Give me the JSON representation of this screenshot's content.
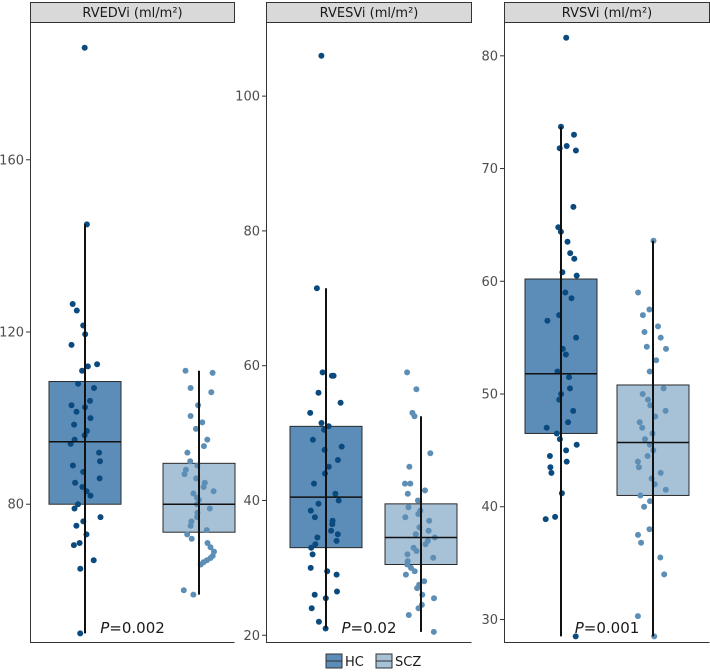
{
  "chart_data": [
    {
      "type": "box",
      "title": "RVEDVi (ml/m²)",
      "ylim": [
        48,
        192
      ],
      "yticks": [
        80,
        120,
        160
      ],
      "annotation": {
        "prefix": "P",
        "value": "=0.002"
      },
      "groups": [
        {
          "name": "HC",
          "box": {
            "min": 50,
            "q1": 80,
            "median": 94.5,
            "q3": 108.5,
            "max": 145
          },
          "points": [
            186,
            145,
            126.5,
            125,
            121.5,
            119.5,
            117,
            112.5,
            112,
            111,
            108,
            107,
            104,
            103,
            102.5,
            101.5,
            100,
            98.5,
            97,
            96,
            95,
            94,
            92,
            90,
            89,
            87.5,
            86,
            85,
            84,
            83,
            82,
            80,
            79,
            77,
            76,
            75,
            73,
            71,
            70.5,
            67,
            65,
            50
          ]
        },
        {
          "name": "SCZ",
          "box": {
            "min": 59,
            "q1": 73.5,
            "median": 80,
            "q3": 89.5,
            "max": 111
          },
          "points": [
            111,
            110.5,
            107,
            106,
            103,
            100.5,
            99,
            97.5,
            95,
            93.5,
            92,
            90,
            89,
            88,
            87,
            86,
            85,
            84,
            83,
            82.5,
            81.5,
            81,
            80,
            79,
            78,
            77,
            76,
            75,
            74,
            73,
            72,
            71,
            70,
            69,
            68,
            67.5,
            67,
            66.5,
            66,
            60,
            59
          ]
        }
      ]
    },
    {
      "type": "box",
      "title": "RVESVi (ml/m²)",
      "ylim": [
        19,
        111
      ],
      "yticks": [
        20,
        40,
        60,
        80,
        100
      ],
      "annotation": {
        "prefix": "P",
        "value": "=0.02"
      },
      "groups": [
        {
          "name": "HC",
          "box": {
            "min": 21,
            "q1": 33,
            "median": 40.5,
            "q3": 51,
            "max": 71.5
          },
          "points": [
            106,
            71.5,
            59,
            58.5,
            58.5,
            56,
            54.5,
            53,
            51.5,
            51,
            50.5,
            49,
            48,
            47.5,
            46,
            45,
            44,
            42.5,
            41,
            40,
            39.5,
            38.5,
            37.5,
            37,
            36.5,
            35.5,
            35,
            34.5,
            34,
            33.5,
            33,
            32,
            30,
            29.5,
            29,
            26.5,
            26,
            25.5,
            24,
            22,
            21
          ]
        },
        {
          "name": "SCZ",
          "box": {
            "min": 20.5,
            "q1": 30.5,
            "median": 34.5,
            "q3": 39.5,
            "max": 52.5
          },
          "points": [
            59,
            56.5,
            53,
            52.5,
            47,
            45,
            42.5,
            42.5,
            41.5,
            41,
            40,
            39,
            38.5,
            38,
            37.5,
            37,
            36,
            35.5,
            35,
            34.5,
            34,
            33.5,
            33,
            32.5,
            32,
            31.5,
            31,
            30.5,
            30,
            29.5,
            29,
            28,
            27.5,
            27,
            26,
            25.5,
            24.5,
            24,
            23,
            20.5
          ]
        }
      ]
    },
    {
      "type": "box",
      "title": "RVSVi (ml/m²)",
      "ylim": [
        28,
        83
      ],
      "yticks": [
        30,
        40,
        50,
        60,
        70,
        80
      ],
      "annotation": {
        "prefix": "P",
        "value": "=0.001"
      },
      "groups": [
        {
          "name": "HC",
          "box": {
            "min": 28.5,
            "q1": 46.5,
            "median": 51.8,
            "q3": 60.2,
            "max": 73.7
          },
          "points": [
            81.6,
            73.7,
            73,
            72,
            71.8,
            71.6,
            66.6,
            64.8,
            64.4,
            63.5,
            62.5,
            62,
            60.8,
            60.5,
            59,
            58.5,
            57,
            56.5,
            55,
            54,
            53.5,
            52,
            51.5,
            50.5,
            50,
            49.5,
            48.5,
            47.5,
            47,
            46.5,
            46,
            45.5,
            45,
            44.5,
            44,
            43.5,
            43,
            41.2,
            39.1,
            38.9,
            28.5
          ]
        },
        {
          "name": "SCZ",
          "box": {
            "min": 28.5,
            "q1": 41,
            "median": 45.7,
            "q3": 50.8,
            "max": 63.6
          },
          "points": [
            63.6,
            59,
            57.5,
            57,
            56,
            55.5,
            55,
            54.2,
            54,
            53,
            52,
            50.5,
            50,
            49.5,
            49,
            48.5,
            48,
            47.5,
            47,
            46.5,
            46,
            45.5,
            45,
            44.5,
            44,
            43.5,
            43,
            42.5,
            42,
            41.5,
            41,
            40.5,
            40,
            38,
            37.5,
            36.8,
            35.5,
            34,
            30.3,
            28.5
          ]
        }
      ]
    }
  ],
  "legend": {
    "items": [
      {
        "label": "HC",
        "color": "#5b8db8"
      },
      {
        "label": "SCZ",
        "color": "#a7c1d7"
      }
    ]
  },
  "colors": {
    "hc_box": "#5b8db8",
    "scz_box": "#a7c1d7",
    "hc_point": "#0b4a7f",
    "scz_point": "#5d8fb6"
  }
}
